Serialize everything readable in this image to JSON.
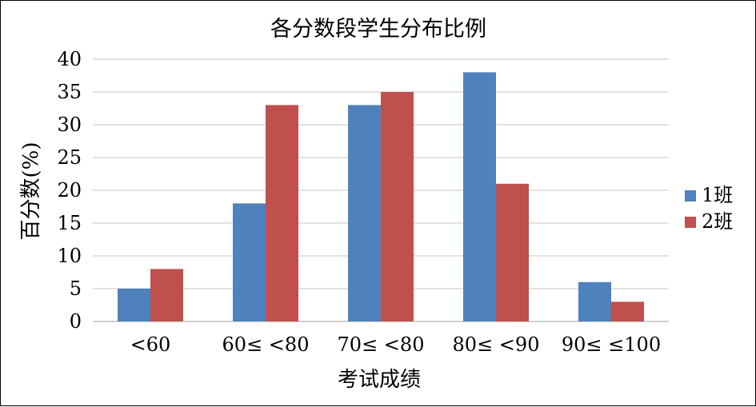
{
  "chart_data": {
    "type": "bar",
    "title": "各分数段学生分布比例",
    "xlabel": "考试成绩",
    "ylabel": "百分数(%)",
    "categories": [
      "<60",
      "60≤ <80",
      "70≤ <80",
      "80≤ <90",
      "90≤ ≤100"
    ],
    "series": [
      {
        "name": "1班",
        "values": [
          5,
          18,
          33,
          38,
          6
        ],
        "color": "#4f81bd"
      },
      {
        "name": "2班",
        "values": [
          8,
          33,
          35,
          21,
          3
        ],
        "color": "#c0504d"
      }
    ],
    "ylim": [
      0,
      40
    ],
    "yticks": [
      0,
      5,
      10,
      15,
      20,
      25,
      30,
      35,
      40
    ],
    "grid": true,
    "legend": "right"
  }
}
